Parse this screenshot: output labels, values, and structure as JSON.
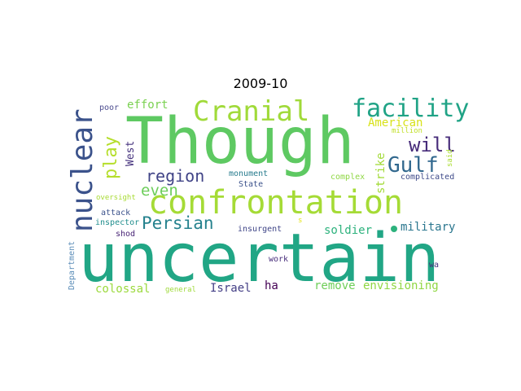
{
  "title": "2009-10",
  "words": [
    {
      "text": "Though",
      "color": "#5ec962"
    },
    {
      "text": "uncertain",
      "color": "#21a685"
    },
    {
      "text": "confrontation",
      "color": "#a5db36"
    },
    {
      "text": "nuclear",
      "color": "#3b528b"
    },
    {
      "text": "Cranial",
      "color": "#a0da39"
    },
    {
      "text": "facility",
      "color": "#20a386"
    },
    {
      "text": "Gulf",
      "color": "#31688e"
    },
    {
      "text": "will",
      "color": "#472c7a"
    },
    {
      "text": "play",
      "color": "#b5de2b"
    },
    {
      "text": "even",
      "color": "#6ccd5a"
    },
    {
      "text": "region",
      "color": "#414487"
    },
    {
      "text": "Persian",
      "color": "#26828e"
    },
    {
      "text": "effort",
      "color": "#7ad151"
    },
    {
      "text": "American",
      "color": "#d8e219"
    },
    {
      "text": "West",
      "color": "#46337e"
    },
    {
      "text": "strike",
      "color": "#a2da37"
    },
    {
      "text": "soldier",
      "color": "#2db27d"
    },
    {
      "text": "military",
      "color": "#2a768e"
    },
    {
      "text": "remove",
      "color": "#6ece58"
    },
    {
      "text": "envisioning",
      "color": "#90d743"
    },
    {
      "text": "colossal",
      "color": "#9bd93c"
    },
    {
      "text": "Israel",
      "color": "#433e85"
    },
    {
      "text": "ha",
      "color": "#440154"
    },
    {
      "text": "poor",
      "color": "#4d4d8f"
    },
    {
      "text": "million",
      "color": "#c0df25"
    },
    {
      "text": "said",
      "color": "#aadc32"
    },
    {
      "text": "monument",
      "color": "#287c8e"
    },
    {
      "text": "complex",
      "color": "#8fd744"
    },
    {
      "text": "complicated",
      "color": "#3e4a89"
    },
    {
      "text": "oversight",
      "color": "#a8db34"
    },
    {
      "text": "State",
      "color": "#3b528b"
    },
    {
      "text": "attack",
      "color": "#3b528b"
    },
    {
      "text": "inspector",
      "color": "#218e8d"
    },
    {
      "text": "insurgent",
      "color": "#404688"
    },
    {
      "text": "shod",
      "color": "#482475"
    },
    {
      "text": "s",
      "color": "#e5e419"
    },
    {
      "text": "work",
      "color": "#472d7b"
    },
    {
      "text": "wa",
      "color": "#46307e"
    },
    {
      "text": "Department",
      "color": "#5b8db8"
    },
    {
      "text": "general",
      "color": "#9fda3a"
    }
  ]
}
